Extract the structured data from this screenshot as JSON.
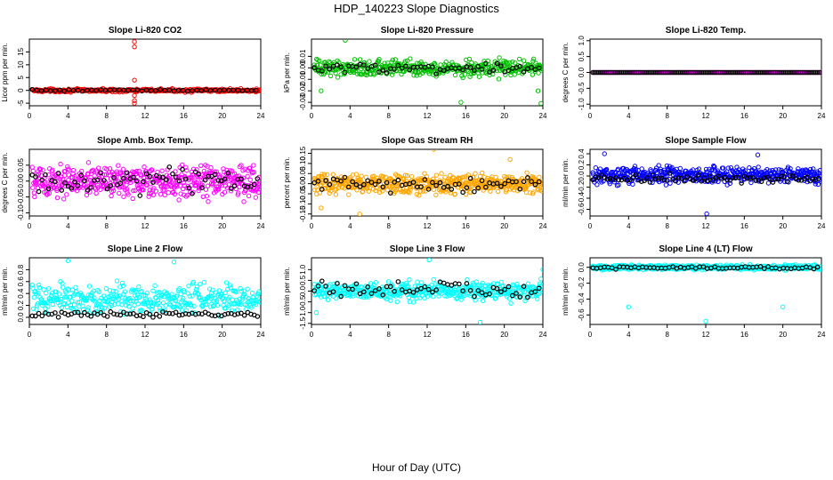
{
  "figure": {
    "title": "HDP_140223  Slope Diagnostics",
    "xlabel": "Hour of Day (UTC)"
  },
  "chart_data": [
    {
      "type": "scatter",
      "title": "Slope Li-820 CO2",
      "ylabel": "Licor ppm per min.",
      "color": "#ff0000",
      "xlim": [
        0,
        24
      ],
      "ylim": [
        -6,
        20
      ],
      "xticks": [
        0,
        4,
        8,
        12,
        16,
        20,
        24
      ],
      "yticks": [
        -5,
        0,
        5,
        10,
        15
      ],
      "base": 0,
      "spread": 0.5,
      "black_mean": 0.0,
      "black_spread": 0.3,
      "n_color": 320,
      "n_black": 50,
      "outliers": [
        [
          10.9,
          19
        ],
        [
          10.9,
          17
        ],
        [
          10.9,
          4
        ],
        [
          10.9,
          -2
        ],
        [
          10.9,
          -4
        ],
        [
          10.9,
          -5
        ]
      ]
    },
    {
      "type": "scatter",
      "title": "Slope Li-820 Pressure",
      "ylabel": "kPa per min.",
      "color": "#00c000",
      "xlim": [
        0,
        24
      ],
      "ylim": [
        -0.033,
        0.025
      ],
      "xticks": [
        0,
        4,
        8,
        12,
        16,
        20,
        24
      ],
      "yticks": [
        -0.03,
        -0.02,
        -0.01,
        0.0,
        0.01
      ],
      "base": 0.0,
      "spread": 0.006,
      "black_mean": 0.0,
      "black_spread": 0.004,
      "n_color": 420,
      "n_black": 60,
      "outliers": [
        [
          3.5,
          0.024
        ],
        [
          15.5,
          -0.03
        ],
        [
          1.0,
          -0.02
        ],
        [
          23.8,
          -0.031
        ],
        [
          23.5,
          -0.02
        ]
      ]
    },
    {
      "type": "scatter",
      "title": "Slope Li-820 Temp.",
      "ylabel": "degrees C per min.",
      "color": "#ff00ff",
      "xlim": [
        0,
        24
      ],
      "ylim": [
        -1.05,
        1.05
      ],
      "xticks": [
        0,
        4,
        8,
        12,
        16,
        20,
        24
      ],
      "yticks": [
        -1.0,
        -0.5,
        0.0,
        0.5,
        1.0
      ],
      "base": 0.0,
      "spread": 0.0,
      "black_mean": 0.0,
      "black_spread": 0.0,
      "n_color": 200,
      "n_black": 120,
      "outliers": []
    },
    {
      "type": "scatter",
      "title": "Slope Amb. Box Temp.",
      "ylabel": "degrees C per min.",
      "color": "#ff00ff",
      "xlim": [
        0,
        24
      ],
      "ylim": [
        -0.11,
        0.1
      ],
      "xticks": [
        0,
        4,
        8,
        12,
        16,
        20,
        24
      ],
      "yticks": [
        -0.1,
        -0.05,
        0.0,
        0.05
      ],
      "base": 0.0,
      "spread": 0.045,
      "black_mean": 0.0,
      "black_spread": 0.035,
      "n_color": 500,
      "n_black": 70,
      "outliers": []
    },
    {
      "type": "scatter",
      "title": "Slope Gas Stream RH",
      "ylabel": "percent per min.",
      "color": "#ffa500",
      "xlim": [
        0,
        24
      ],
      "ylim": [
        -0.16,
        0.17
      ],
      "xticks": [
        0,
        4,
        8,
        12,
        16,
        20,
        24
      ],
      "yticks": [
        -0.15,
        -0.1,
        -0.05,
        0.0,
        0.05,
        0.1,
        0.15
      ],
      "base": 0.0,
      "spread": 0.04,
      "black_mean": 0.0,
      "black_spread": 0.03,
      "n_color": 500,
      "n_black": 60,
      "outliers": [
        [
          12.7,
          0.17
        ],
        [
          5.0,
          -0.15
        ],
        [
          1.0,
          -0.12
        ],
        [
          20.6,
          0.12
        ]
      ]
    },
    {
      "type": "scatter",
      "title": "Slope Sample Flow",
      "ylabel": "ml/min per min.",
      "color": "#0000ff",
      "xlim": [
        0,
        24
      ],
      "ylim": [
        -0.72,
        0.48
      ],
      "xticks": [
        0,
        4,
        8,
        12,
        16,
        20,
        24
      ],
      "yticks": [
        -0.6,
        -0.4,
        -0.2,
        0.0,
        0.2,
        0.4
      ],
      "base": 0.02,
      "spread": 0.12,
      "black_mean": -0.05,
      "black_spread": 0.07,
      "n_color": 500,
      "n_black": 80,
      "outliers": [
        [
          12.1,
          -0.68
        ],
        [
          17.4,
          0.38
        ],
        [
          1.5,
          0.4
        ]
      ]
    },
    {
      "type": "scatter",
      "title": "Slope Line 2 Flow",
      "ylabel": "ml/min per min.",
      "color": "#00ffff",
      "xlim": [
        0,
        24
      ],
      "ylim": [
        -0.12,
        1.0
      ],
      "xticks": [
        0,
        4,
        8,
        12,
        16,
        20,
        24
      ],
      "yticks": [
        0.0,
        0.2,
        0.4,
        0.6,
        0.8
      ],
      "base": 0.3,
      "spread": 0.2,
      "black_mean": 0.05,
      "black_spread": 0.04,
      "n_color": 380,
      "n_black": 70,
      "outliers": [
        [
          4.0,
          0.95
        ],
        [
          15.0,
          0.93
        ]
      ]
    },
    {
      "type": "scatter",
      "title": "Slope Line 3 Flow",
      "ylabel": "ml/min per min.",
      "color": "#00ffff",
      "xlim": [
        0,
        24
      ],
      "ylim": [
        -1.55,
        1.55
      ],
      "xticks": [
        0,
        4,
        8,
        12,
        16,
        20,
        24
      ],
      "yticks": [
        -1.5,
        -1.0,
        -0.5,
        0.0,
        0.5,
        1.0
      ],
      "base": 0.0,
      "spread": 0.35,
      "black_mean": 0.05,
      "black_spread": 0.3,
      "n_color": 450,
      "n_black": 60,
      "outliers": [
        [
          12.2,
          1.45
        ],
        [
          17.5,
          -1.45
        ],
        [
          0.5,
          -1.0
        ],
        [
          24.0,
          1.0
        ]
      ]
    },
    {
      "type": "scatter",
      "title": "Slope Line 4 (LT) Flow",
      "ylabel": "ml/min per min.",
      "color": "#00ffff",
      "xlim": [
        0,
        24
      ],
      "ylim": [
        -0.72,
        0.12
      ],
      "xticks": [
        0,
        4,
        8,
        12,
        16,
        20,
        24
      ],
      "yticks": [
        -0.6,
        -0.4,
        -0.2,
        0.0
      ],
      "base": 0.0,
      "spread": 0.025,
      "black_mean": -0.005,
      "black_spread": 0.015,
      "n_color": 450,
      "n_black": 60,
      "outliers": [
        [
          4.0,
          -0.5
        ],
        [
          12.0,
          -0.68
        ],
        [
          20.0,
          -0.5
        ]
      ]
    }
  ]
}
